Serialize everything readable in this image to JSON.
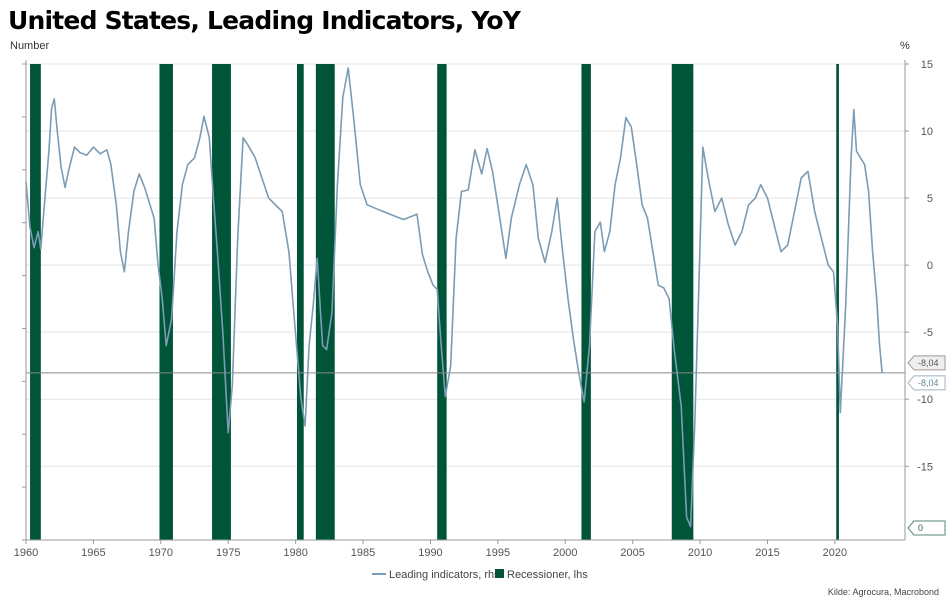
{
  "title": "United States, Leading Indicators, YoY",
  "source": "Kilde: Agrocura, Macrobond",
  "colors": {
    "line": "#7b9cb4",
    "recession": "#005538",
    "grid": "#e3e3e3",
    "refline": "#8a8a8a"
  },
  "chart_data": {
    "type": "line",
    "title": "United States, Leading Indicators, YoY",
    "left_axis_label": "Number",
    "right_axis_label": "%",
    "xlim": [
      1960,
      2025.2
    ],
    "x_ticks": [
      1960,
      1965,
      1970,
      1975,
      1980,
      1985,
      1990,
      1995,
      2000,
      2005,
      2010,
      2015,
      2020
    ],
    "ylim_right": [
      -20.5,
      15
    ],
    "y_ticks_right": [
      15,
      10,
      5,
      0,
      -5,
      -10,
      -15
    ],
    "grid": true,
    "legend_position": "bottom-center",
    "legend": [
      "Leading indicators, rhs",
      "Recessioner, lhs"
    ],
    "reference_line": -8.04,
    "callouts": [
      {
        "label": "-8,04",
        "axis": "rhs",
        "value": -8.04
      },
      {
        "label": "-8,04",
        "axis": "rhs",
        "value": -8.04
      },
      {
        "label": "0",
        "axis": "lhs",
        "value": 0
      }
    ],
    "series": [
      {
        "name": "Recessioner, lhs",
        "type": "bar",
        "periods": [
          [
            1960.3,
            1961.1
          ],
          [
            1969.9,
            1970.9
          ],
          [
            1973.8,
            1975.2
          ],
          [
            1980.1,
            1980.6
          ],
          [
            1981.5,
            1982.9
          ],
          [
            1990.5,
            1991.2
          ],
          [
            2001.2,
            2001.9
          ],
          [
            2007.9,
            2009.5
          ],
          [
            2020.1,
            2020.3
          ]
        ]
      },
      {
        "name": "Leading indicators, rhs",
        "type": "line",
        "points": [
          [
            1960.0,
            6.2
          ],
          [
            1960.3,
            2.8
          ],
          [
            1960.6,
            1.3
          ],
          [
            1960.9,
            2.5
          ],
          [
            1961.1,
            1.2
          ],
          [
            1961.4,
            5.0
          ],
          [
            1961.7,
            8.5
          ],
          [
            1961.9,
            11.7
          ],
          [
            1962.1,
            12.4
          ],
          [
            1962.3,
            10.2
          ],
          [
            1962.6,
            7.3
          ],
          [
            1962.9,
            5.8
          ],
          [
            1963.2,
            7.2
          ],
          [
            1963.6,
            8.8
          ],
          [
            1964.0,
            8.4
          ],
          [
            1964.5,
            8.2
          ],
          [
            1965.0,
            8.8
          ],
          [
            1965.5,
            8.3
          ],
          [
            1966.0,
            8.6
          ],
          [
            1966.3,
            7.5
          ],
          [
            1966.7,
            4.5
          ],
          [
            1967.0,
            1.0
          ],
          [
            1967.3,
            -0.5
          ],
          [
            1967.6,
            2.5
          ],
          [
            1968.0,
            5.5
          ],
          [
            1968.4,
            6.8
          ],
          [
            1968.8,
            5.8
          ],
          [
            1969.2,
            4.5
          ],
          [
            1969.5,
            3.5
          ],
          [
            1969.8,
            0.0
          ],
          [
            1970.1,
            -2.5
          ],
          [
            1970.4,
            -6.0
          ],
          [
            1970.8,
            -4.0
          ],
          [
            1971.2,
            2.5
          ],
          [
            1971.6,
            6.0
          ],
          [
            1972.0,
            7.5
          ],
          [
            1972.5,
            8.0
          ],
          [
            1972.9,
            9.5
          ],
          [
            1973.2,
            11.1
          ],
          [
            1973.6,
            9.5
          ],
          [
            1973.9,
            5.0
          ],
          [
            1974.2,
            1.0
          ],
          [
            1974.6,
            -5.0
          ],
          [
            1975.0,
            -12.5
          ],
          [
            1975.3,
            -9.0
          ],
          [
            1975.7,
            2.0
          ],
          [
            1976.1,
            9.5
          ],
          [
            1976.5,
            8.9
          ],
          [
            1977.0,
            8.0
          ],
          [
            1977.5,
            6.5
          ],
          [
            1978.0,
            5.0
          ],
          [
            1978.5,
            4.5
          ],
          [
            1979.0,
            4.0
          ],
          [
            1979.5,
            1.0
          ],
          [
            1979.9,
            -4.0
          ],
          [
            1980.4,
            -10.0
          ],
          [
            1980.7,
            -12.0
          ],
          [
            1981.0,
            -6.0
          ],
          [
            1981.3,
            -3.0
          ],
          [
            1981.6,
            0.5
          ],
          [
            1982.0,
            -6.0
          ],
          [
            1982.3,
            -6.3
          ],
          [
            1982.7,
            -3.5
          ],
          [
            1983.1,
            6.0
          ],
          [
            1983.5,
            12.5
          ],
          [
            1983.9,
            14.7
          ],
          [
            1984.3,
            11.0
          ],
          [
            1984.8,
            6.0
          ],
          [
            1985.3,
            4.5
          ],
          [
            1986.0,
            4.2
          ],
          [
            1987.0,
            3.8
          ],
          [
            1988.0,
            3.4
          ],
          [
            1989.0,
            3.8
          ],
          [
            1989.4,
            0.8
          ],
          [
            1989.8,
            -0.5
          ],
          [
            1990.2,
            -1.5
          ],
          [
            1990.5,
            -1.8
          ],
          [
            1990.8,
            -6.0
          ],
          [
            1991.1,
            -9.8
          ],
          [
            1991.5,
            -7.5
          ],
          [
            1991.9,
            2.0
          ],
          [
            1992.3,
            5.5
          ],
          [
            1992.8,
            5.6
          ],
          [
            1993.3,
            8.6
          ],
          [
            1993.8,
            6.8
          ],
          [
            1994.2,
            8.7
          ],
          [
            1994.6,
            7.0
          ],
          [
            1995.1,
            3.8
          ],
          [
            1995.6,
            0.5
          ],
          [
            1996.0,
            3.5
          ],
          [
            1996.6,
            6.0
          ],
          [
            1997.1,
            7.5
          ],
          [
            1997.6,
            6.0
          ],
          [
            1998.0,
            2.0
          ],
          [
            1998.5,
            0.2
          ],
          [
            1999.0,
            2.5
          ],
          [
            1999.4,
            5.0
          ],
          [
            1999.8,
            1.0
          ],
          [
            2000.2,
            -2.5
          ],
          [
            2000.6,
            -5.5
          ],
          [
            2001.0,
            -8.0
          ],
          [
            2001.4,
            -10.2
          ],
          [
            2001.8,
            -6.0
          ],
          [
            2002.2,
            2.5
          ],
          [
            2002.6,
            3.2
          ],
          [
            2002.9,
            1.0
          ],
          [
            2003.3,
            2.5
          ],
          [
            2003.7,
            6.0
          ],
          [
            2004.1,
            8.0
          ],
          [
            2004.5,
            11.0
          ],
          [
            2004.9,
            10.3
          ],
          [
            2005.3,
            7.5
          ],
          [
            2005.7,
            4.5
          ],
          [
            2006.1,
            3.5
          ],
          [
            2006.5,
            1.0
          ],
          [
            2006.9,
            -1.5
          ],
          [
            2007.3,
            -1.7
          ],
          [
            2007.7,
            -2.5
          ],
          [
            2008.1,
            -6.5
          ],
          [
            2008.6,
            -10.5
          ],
          [
            2009.0,
            -18.8
          ],
          [
            2009.3,
            -19.5
          ],
          [
            2009.6,
            -12.0
          ],
          [
            2009.9,
            -2.0
          ],
          [
            2010.2,
            8.8
          ],
          [
            2010.6,
            6.5
          ],
          [
            2011.1,
            4.0
          ],
          [
            2011.6,
            5.0
          ],
          [
            2012.1,
            3.0
          ],
          [
            2012.6,
            1.5
          ],
          [
            2013.1,
            2.5
          ],
          [
            2013.6,
            4.5
          ],
          [
            2014.1,
            5.0
          ],
          [
            2014.5,
            6.0
          ],
          [
            2015.0,
            5.0
          ],
          [
            2015.5,
            3.0
          ],
          [
            2016.0,
            1.0
          ],
          [
            2016.5,
            1.5
          ],
          [
            2017.0,
            4.0
          ],
          [
            2017.5,
            6.5
          ],
          [
            2018.0,
            7.0
          ],
          [
            2018.5,
            4.0
          ],
          [
            2019.0,
            2.0
          ],
          [
            2019.5,
            0.0
          ],
          [
            2019.9,
            -0.5
          ],
          [
            2020.2,
            -4.5
          ],
          [
            2020.4,
            -11.0
          ],
          [
            2020.8,
            -3.0
          ],
          [
            2021.2,
            8.0
          ],
          [
            2021.4,
            11.6
          ],
          [
            2021.6,
            8.5
          ],
          [
            2021.9,
            8.0
          ],
          [
            2022.2,
            7.5
          ],
          [
            2022.5,
            5.5
          ],
          [
            2022.8,
            1.0
          ],
          [
            2023.1,
            -2.5
          ],
          [
            2023.3,
            -5.8
          ],
          [
            2023.5,
            -8.04
          ]
        ]
      }
    ]
  }
}
